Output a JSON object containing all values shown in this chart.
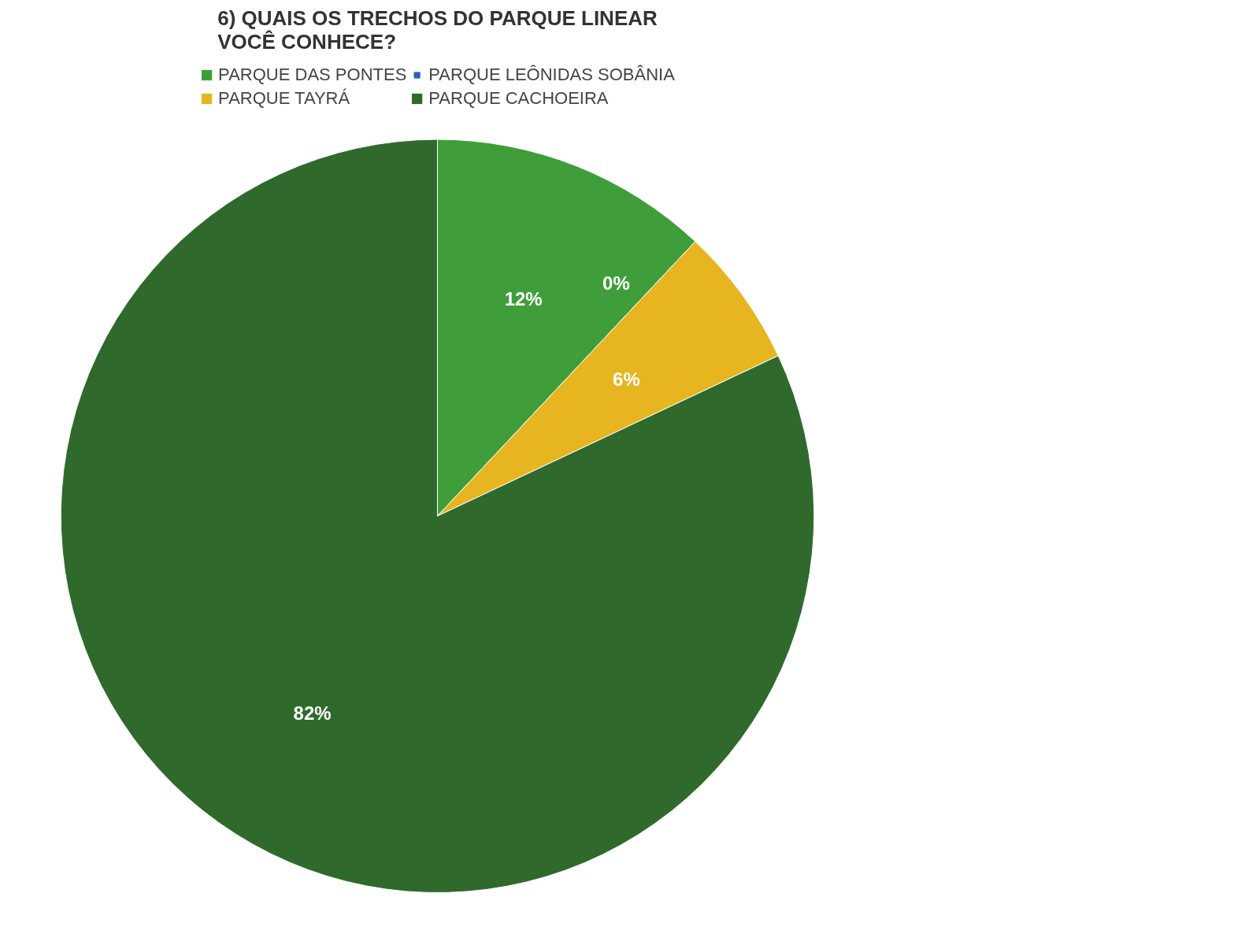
{
  "chart_data": {
    "type": "pie",
    "title": "6) QUAIS OS TRECHOS DO PARQUE LINEAR VOCÊ CONHECE?",
    "categories": [
      "PARQUE DAS PONTES",
      "PARQUE LEÔNIDAS SOBÂNIA",
      "PARQUE TAYRÁ",
      "PARQUE CACHOEIRA"
    ],
    "values": [
      12,
      0,
      6,
      82
    ],
    "value_labels": [
      "12%",
      "0%",
      "6%",
      "82%"
    ],
    "colors": [
      "#3f9e3a",
      "#2f5fb8",
      "#e6b520",
      "#2f6a2c"
    ],
    "legend": "top"
  }
}
